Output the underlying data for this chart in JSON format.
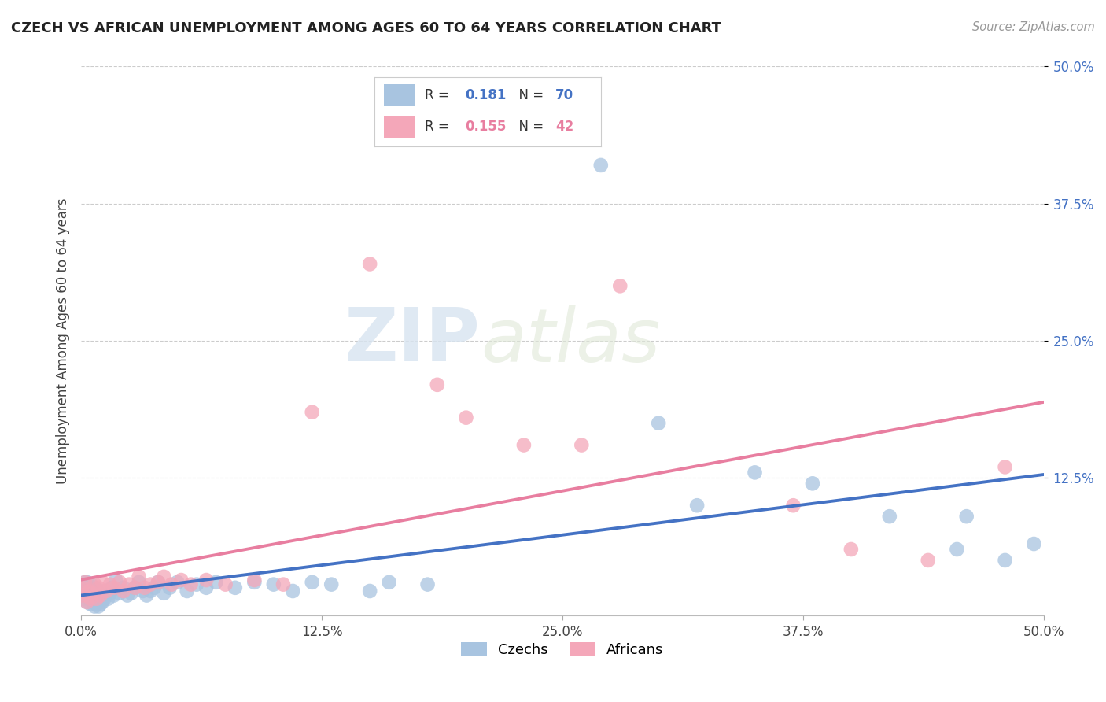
{
  "title": "CZECH VS AFRICAN UNEMPLOYMENT AMONG AGES 60 TO 64 YEARS CORRELATION CHART",
  "source": "Source: ZipAtlas.com",
  "ylabel": "Unemployment Among Ages 60 to 64 years",
  "xlabel": "",
  "xlim": [
    0.0,
    0.5
  ],
  "ylim": [
    0.0,
    0.5
  ],
  "xtick_vals": [
    0.0,
    0.125,
    0.25,
    0.375,
    0.5
  ],
  "ytick_vals": [
    0.125,
    0.25,
    0.375,
    0.5
  ],
  "xtick_labels": [
    "0.0%",
    "12.5%",
    "25.0%",
    "37.5%",
    "50.0%"
  ],
  "ytick_labels": [
    "12.5%",
    "25.0%",
    "37.5%",
    "50.0%"
  ],
  "czech_R": 0.181,
  "czech_N": 70,
  "african_R": 0.155,
  "african_N": 42,
  "czech_color": "#a8c4e0",
  "african_color": "#f4a7b9",
  "czech_line_color": "#4472c4",
  "african_line_color": "#e87ea0",
  "background_color": "#ffffff",
  "grid_color": "#cccccc",
  "watermark_ZIP": "ZIP",
  "watermark_atlas": "atlas",
  "czech_x": [
    0.0,
    0.001,
    0.001,
    0.002,
    0.002,
    0.003,
    0.003,
    0.003,
    0.004,
    0.004,
    0.005,
    0.005,
    0.005,
    0.006,
    0.006,
    0.007,
    0.007,
    0.007,
    0.008,
    0.008,
    0.009,
    0.009,
    0.01,
    0.01,
    0.011,
    0.011,
    0.012,
    0.013,
    0.014,
    0.015,
    0.016,
    0.017,
    0.018,
    0.02,
    0.022,
    0.024,
    0.026,
    0.028,
    0.03,
    0.032,
    0.034,
    0.036,
    0.038,
    0.04,
    0.043,
    0.046,
    0.05,
    0.055,
    0.06,
    0.065,
    0.07,
    0.08,
    0.09,
    0.1,
    0.11,
    0.12,
    0.13,
    0.15,
    0.16,
    0.18,
    0.27,
    0.3,
    0.32,
    0.35,
    0.38,
    0.42,
    0.455,
    0.46,
    0.48,
    0.495
  ],
  "czech_y": [
    0.02,
    0.015,
    0.025,
    0.018,
    0.03,
    0.012,
    0.022,
    0.03,
    0.015,
    0.025,
    0.01,
    0.02,
    0.028,
    0.012,
    0.022,
    0.008,
    0.018,
    0.025,
    0.01,
    0.02,
    0.008,
    0.018,
    0.01,
    0.022,
    0.012,
    0.02,
    0.015,
    0.022,
    0.015,
    0.02,
    0.025,
    0.018,
    0.032,
    0.02,
    0.025,
    0.018,
    0.02,
    0.025,
    0.03,
    0.022,
    0.018,
    0.022,
    0.025,
    0.03,
    0.02,
    0.025,
    0.03,
    0.022,
    0.028,
    0.025,
    0.03,
    0.025,
    0.03,
    0.028,
    0.022,
    0.03,
    0.028,
    0.022,
    0.03,
    0.028,
    0.41,
    0.175,
    0.1,
    0.13,
    0.12,
    0.09,
    0.06,
    0.09,
    0.05,
    0.065
  ],
  "african_x": [
    0.0,
    0.001,
    0.002,
    0.003,
    0.004,
    0.005,
    0.006,
    0.007,
    0.008,
    0.009,
    0.01,
    0.011,
    0.013,
    0.015,
    0.017,
    0.02,
    0.022,
    0.025,
    0.028,
    0.03,
    0.033,
    0.036,
    0.04,
    0.043,
    0.047,
    0.052,
    0.057,
    0.065,
    0.075,
    0.09,
    0.105,
    0.12,
    0.15,
    0.185,
    0.2,
    0.23,
    0.26,
    0.28,
    0.37,
    0.4,
    0.44,
    0.48
  ],
  "african_y": [
    0.025,
    0.018,
    0.03,
    0.012,
    0.022,
    0.015,
    0.02,
    0.028,
    0.015,
    0.025,
    0.018,
    0.03,
    0.022,
    0.028,
    0.025,
    0.03,
    0.022,
    0.028,
    0.025,
    0.035,
    0.025,
    0.028,
    0.03,
    0.035,
    0.028,
    0.032,
    0.028,
    0.032,
    0.028,
    0.032,
    0.028,
    0.185,
    0.32,
    0.21,
    0.18,
    0.155,
    0.155,
    0.3,
    0.1,
    0.06,
    0.05,
    0.135
  ]
}
